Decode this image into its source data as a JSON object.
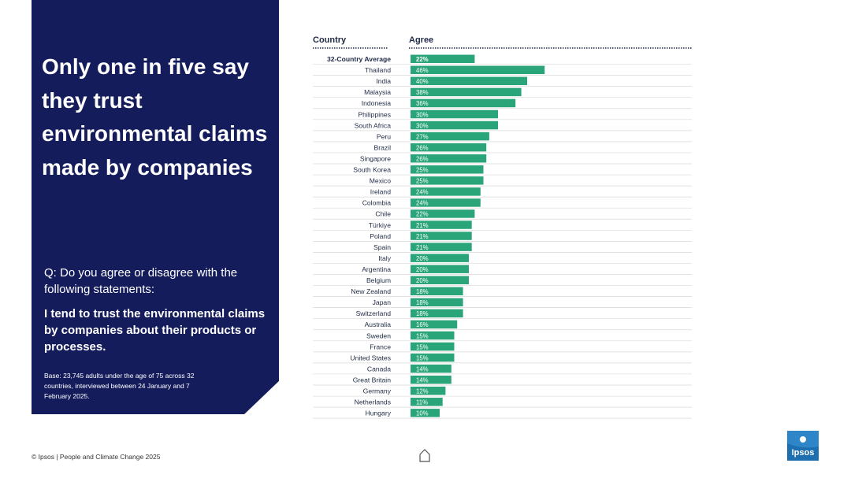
{
  "headline": "Only one in five say they trust environmental claims made by companies",
  "question": "Q: Do you agree or disagree with the following statements:",
  "statement": "I tend to trust the environmental claims by companies about their products or processes.",
  "base": "Base: 23,745 adults under the age of 75 across 32 countries, interviewed between 24 January and 7 February 2025.",
  "footer": "© Ipsos | People and Climate Change 2025",
  "logo_text": "Ipsos",
  "colors": {
    "panel": "#141c5c",
    "bar": "#2aa57a",
    "logo": "#1e6fb0"
  },
  "chart_data": {
    "type": "bar",
    "orientation": "horizontal",
    "title": "",
    "column_headers": {
      "category": "Country",
      "value": "Agree"
    },
    "categories": [
      "32-Country Average",
      "Thailand",
      "India",
      "Malaysia",
      "Indonesia",
      "Philippines",
      "South Africa",
      "Peru",
      "Brazil",
      "Singapore",
      "South Korea",
      "Mexico",
      "Ireland",
      "Colombia",
      "Chile",
      "Türkiye",
      "Poland",
      "Spain",
      "Italy",
      "Argentina",
      "Belgium",
      "New Zealand",
      "Japan",
      "Switzerland",
      "Australia",
      "Sweden",
      "France",
      "United States",
      "Canada",
      "Great Britain",
      "Germany",
      "Netherlands",
      "Hungary"
    ],
    "values": [
      22,
      46,
      40,
      38,
      36,
      30,
      30,
      27,
      26,
      26,
      25,
      25,
      24,
      24,
      22,
      21,
      21,
      21,
      20,
      20,
      20,
      18,
      18,
      18,
      16,
      15,
      15,
      15,
      14,
      14,
      12,
      11,
      10
    ],
    "value_labels": [
      "22%",
      "46%",
      "40%",
      "38%",
      "36%",
      "30%",
      "30%",
      "27%",
      "26%",
      "26%",
      "25%",
      "25%",
      "24%",
      "24%",
      "22%",
      "21%",
      "21%",
      "21%",
      "20%",
      "20%",
      "20%",
      "18%",
      "18%",
      "18%",
      "16%",
      "15%",
      "15%",
      "15%",
      "14%",
      "14%",
      "12%",
      "11%",
      "10%"
    ],
    "highlight_first": true,
    "xlim": [
      0,
      100
    ]
  }
}
